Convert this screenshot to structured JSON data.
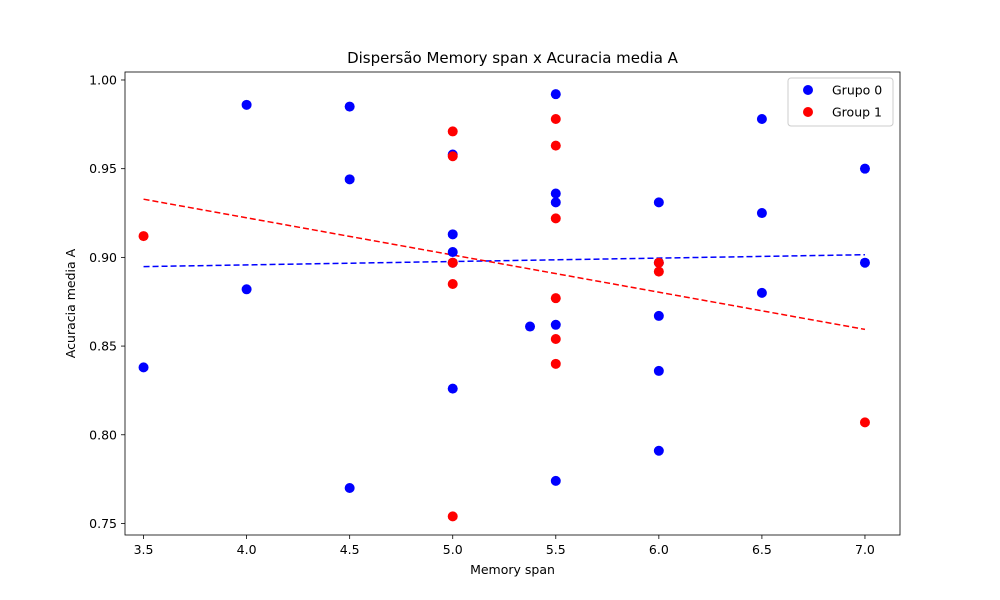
{
  "chart_data": {
    "type": "scatter",
    "title": "Dispersão Memory span x Acuracia media A",
    "xlabel": "Memory span",
    "ylabel": "Acuracia media A",
    "xlim": [
      3.41,
      7.17
    ],
    "ylim": [
      0.7435,
      1.0045
    ],
    "xticks": [
      "3.5",
      "4.0",
      "4.5",
      "5.0",
      "5.5",
      "6.0",
      "6.5",
      "7.0"
    ],
    "yticks": [
      "0.75",
      "0.80",
      "0.85",
      "0.90",
      "0.95",
      "1.00"
    ],
    "grid": false,
    "legend_position": "top-right",
    "series": [
      {
        "name": "Grupo 0",
        "color": "#0000ff",
        "points": [
          [
            3.5,
            0.838
          ],
          [
            4.0,
            0.986
          ],
          [
            4.0,
            0.882
          ],
          [
            4.5,
            0.985
          ],
          [
            4.5,
            0.944
          ],
          [
            4.5,
            0.77
          ],
          [
            5.0,
            0.958
          ],
          [
            5.0,
            0.913
          ],
          [
            5.0,
            0.903
          ],
          [
            5.0,
            0.897
          ],
          [
            5.0,
            0.826
          ],
          [
            5.375,
            0.861
          ],
          [
            5.5,
            0.992
          ],
          [
            5.5,
            0.936
          ],
          [
            5.5,
            0.931
          ],
          [
            5.5,
            0.862
          ],
          [
            5.5,
            0.774
          ],
          [
            6.0,
            0.931
          ],
          [
            6.0,
            0.897
          ],
          [
            6.0,
            0.867
          ],
          [
            6.0,
            0.836
          ],
          [
            6.0,
            0.791
          ],
          [
            6.5,
            0.978
          ],
          [
            6.5,
            0.925
          ],
          [
            6.5,
            0.88
          ],
          [
            7.0,
            0.95
          ],
          [
            7.0,
            0.897
          ]
        ],
        "trend": {
          "x": [
            3.5,
            7.0
          ],
          "y": [
            0.8948,
            0.9015
          ],
          "style": "dashed"
        }
      },
      {
        "name": "Group 1",
        "color": "#ff0000",
        "points": [
          [
            3.5,
            0.912
          ],
          [
            5.0,
            0.971
          ],
          [
            5.0,
            0.957
          ],
          [
            5.0,
            0.897
          ],
          [
            5.0,
            0.885
          ],
          [
            5.0,
            0.754
          ],
          [
            5.5,
            0.978
          ],
          [
            5.5,
            0.963
          ],
          [
            5.5,
            0.922
          ],
          [
            5.5,
            0.877
          ],
          [
            5.5,
            0.854
          ],
          [
            5.5,
            0.84
          ],
          [
            6.0,
            0.897
          ],
          [
            6.0,
            0.892
          ],
          [
            7.0,
            0.807
          ]
        ],
        "trend": {
          "x": [
            3.5,
            7.0
          ],
          "y": [
            0.9328,
            0.8594
          ],
          "style": "dashed"
        }
      }
    ]
  }
}
